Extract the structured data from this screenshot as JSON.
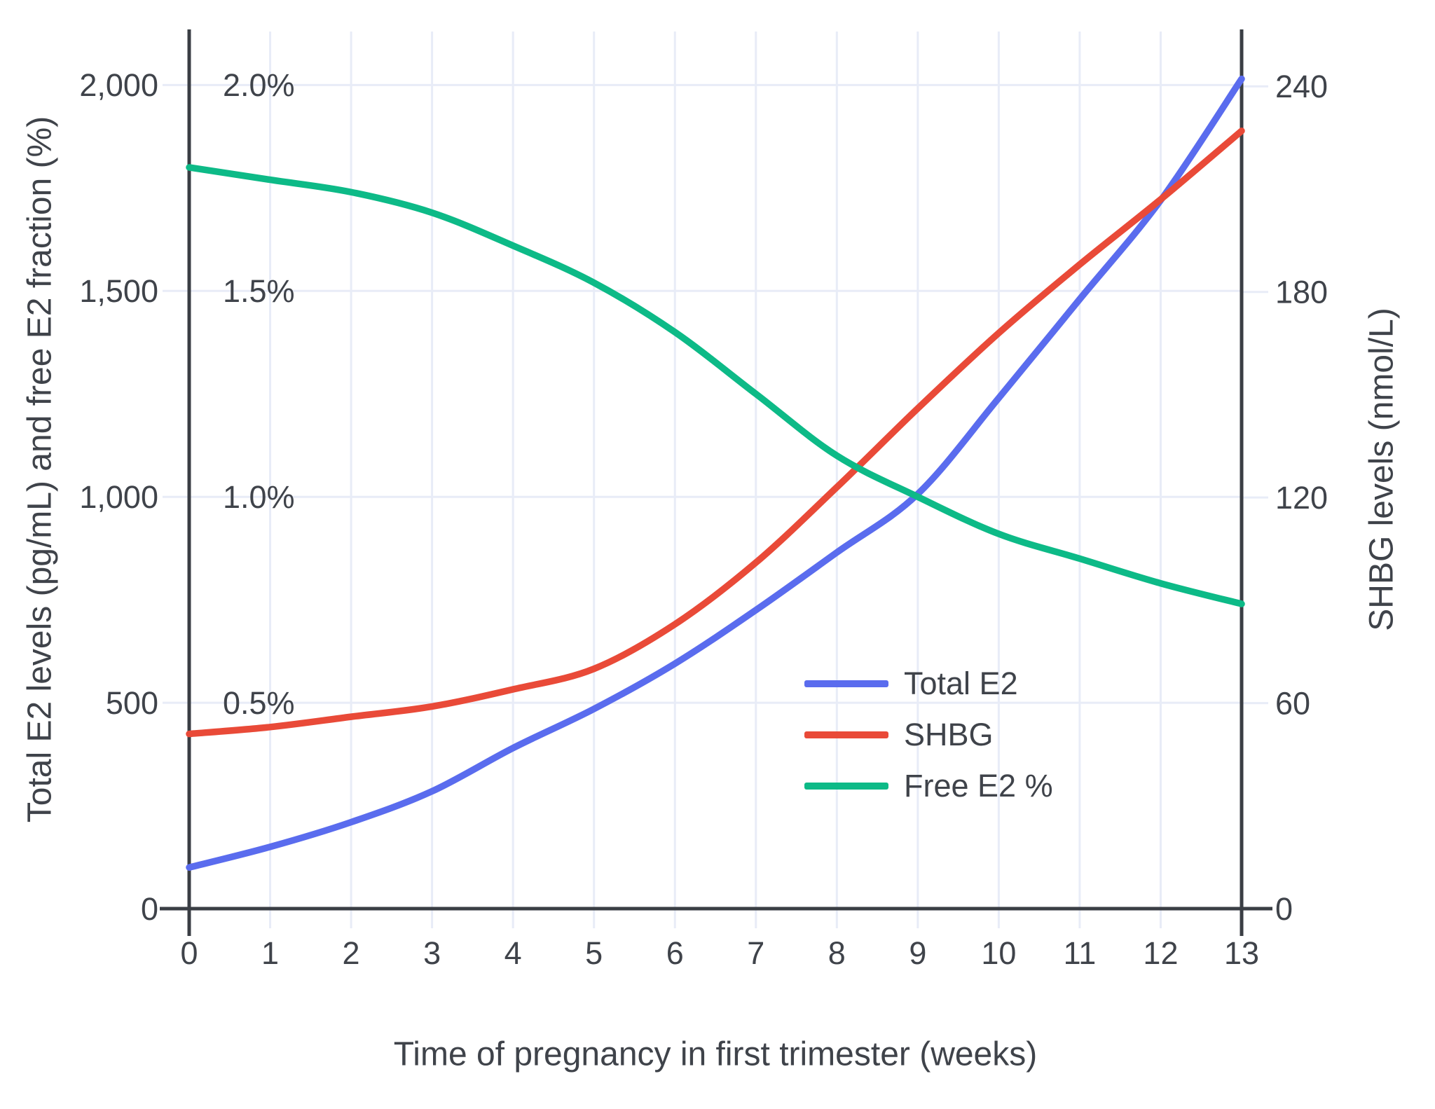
{
  "chart_data": {
    "type": "line",
    "title": "",
    "x_label": "Time of pregnancy in first trimester (weeks)",
    "y_left_label": "Total E2 levels (pg/mL) and free E2 fraction (%)",
    "y_right_label": "SHBG levels (nmol/L)",
    "x": [
      0,
      1,
      2,
      3,
      4,
      5,
      6,
      7,
      8,
      9,
      10,
      11,
      12,
      13
    ],
    "x_tick_labels": [
      "0",
      "1",
      "2",
      "3",
      "4",
      "5",
      "6",
      "7",
      "8",
      "9",
      "10",
      "11",
      "12",
      "13"
    ],
    "x_range": [
      0,
      13
    ],
    "y_left_range": [
      0,
      2130
    ],
    "y_right_range": [
      0,
      256
    ],
    "y_left_ticks": [
      {
        "value": 0,
        "label": "0"
      },
      {
        "value": 500,
        "label": "500"
      },
      {
        "value": 1000,
        "label": "1,000"
      },
      {
        "value": 1500,
        "label": "1,500"
      },
      {
        "value": 2000,
        "label": "2,000"
      }
    ],
    "y_right_ticks": [
      {
        "value": 0,
        "label": "0"
      },
      {
        "value": 60,
        "label": "60"
      },
      {
        "value": 120,
        "label": "120"
      },
      {
        "value": 180,
        "label": "180"
      },
      {
        "value": 240,
        "label": "240"
      }
    ],
    "free_e2_annotations": [
      {
        "label": "0.5%",
        "left_axis_value": 500
      },
      {
        "label": "1.0%",
        "left_axis_value": 1000
      },
      {
        "label": "1.5%",
        "left_axis_value": 1500
      },
      {
        "label": "2.0%",
        "left_axis_value": 2000
      }
    ],
    "grid": true,
    "legend": {
      "position": "inside-right-middle"
    },
    "series": [
      {
        "name": "Total E2",
        "axis": "left",
        "unit": "pg/mL",
        "color": "#5a6cee",
        "values": [
          100,
          150,
          210,
          285,
          390,
          485,
          595,
          725,
          865,
          1007,
          1240,
          1480,
          1720,
          2015
        ]
      },
      {
        "name": "SHBG",
        "axis": "right",
        "unit": "nmol/L",
        "color": "#e94a38",
        "values": [
          51,
          53,
          56,
          59,
          64,
          70,
          83,
          101,
          123,
          146,
          168,
          188,
          207,
          227
        ]
      },
      {
        "name": "Free E2 %",
        "axis": "left",
        "unit": "%",
        "left_axis_scale": 1000,
        "color": "#0dba87",
        "values": [
          1.8,
          1.77,
          1.74,
          1.69,
          1.61,
          1.52,
          1.4,
          1.25,
          1.1,
          1.0,
          0.91,
          0.85,
          0.79,
          0.74
        ]
      }
    ],
    "style": {
      "background": "#ffffff",
      "grid_color": "#e8ecf7",
      "axis_color": "#3a3e44",
      "text_color": "#3f434a"
    }
  }
}
